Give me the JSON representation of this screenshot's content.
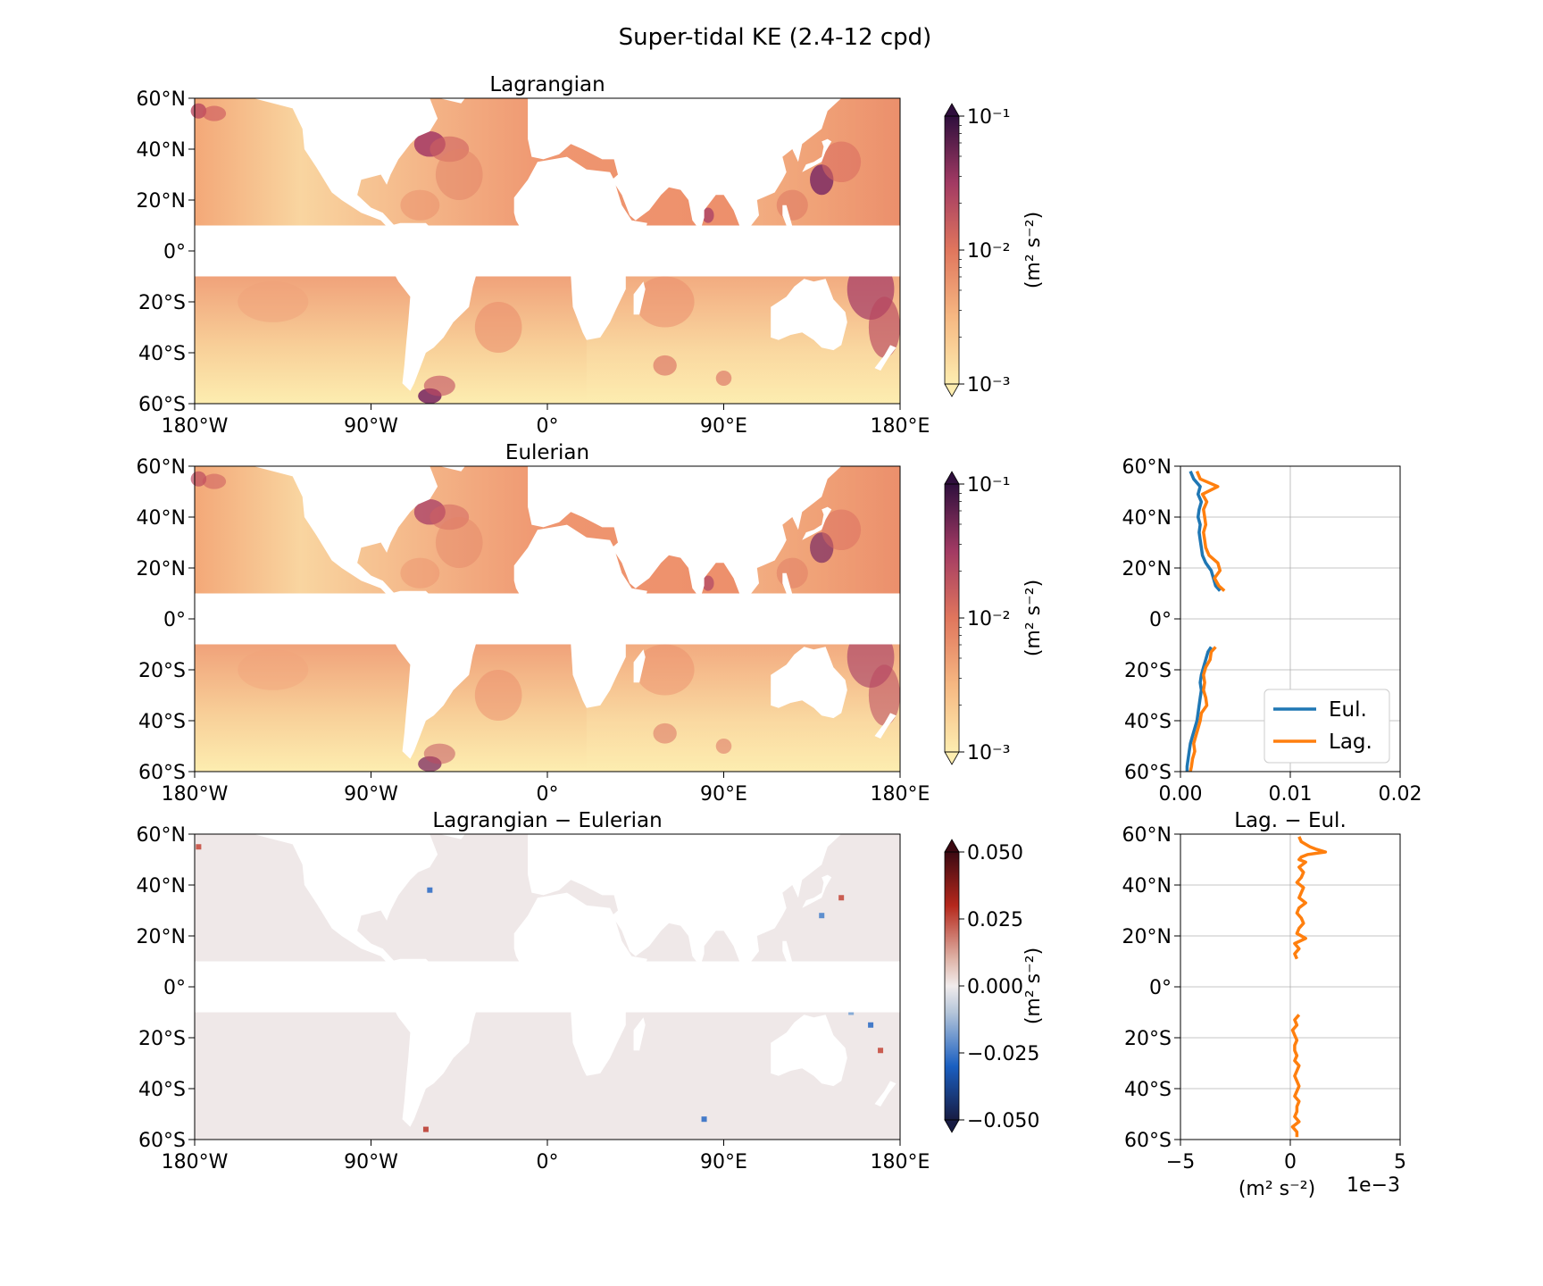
{
  "figure": {
    "title": "Super-tidal KE  (2.4-12 cpd)"
  },
  "colors": {
    "eul": "#1f77b4",
    "lag": "#ff7f0e",
    "diff": "#000000",
    "land": "#ffffff",
    "grid": "#b0b0b0"
  },
  "chart_data": [
    {
      "type": "heatmap",
      "title": "Lagrangian",
      "colorbar": {
        "scale": "log",
        "range": [
          0.001,
          0.1
        ],
        "ticks": [
          "10⁻¹",
          "10⁻²",
          "10⁻³"
        ],
        "label": "(m² s⁻²)",
        "colormap": "matter"
      },
      "xlim": [
        -180,
        180
      ],
      "ylim": [
        -60,
        60
      ],
      "xticks": [
        "180°W",
        "90°W",
        "0°",
        "90°E",
        "180°E"
      ],
      "yticks": [
        "60°N",
        "40°N",
        "20°N",
        "0°",
        "20°S",
        "40°S",
        "60°S"
      ]
    },
    {
      "type": "heatmap",
      "title": "Eulerian",
      "colorbar": {
        "scale": "log",
        "range": [
          0.001,
          0.1
        ],
        "ticks": [
          "10⁻¹",
          "10⁻²",
          "10⁻³"
        ],
        "label": "(m² s⁻²)",
        "colormap": "matter"
      },
      "xlim": [
        -180,
        180
      ],
      "ylim": [
        -60,
        60
      ],
      "xticks": [
        "180°W",
        "90°W",
        "0°",
        "90°E",
        "180°E"
      ],
      "yticks": [
        "60°N",
        "40°N",
        "20°N",
        "0°",
        "20°S",
        "40°S",
        "60°S"
      ]
    },
    {
      "type": "heatmap",
      "title": "Lagrangian − Eulerian",
      "colorbar": {
        "scale": "linear",
        "range": [
          -0.05,
          0.05
        ],
        "ticks": [
          "0.050",
          "0.025",
          "0.000",
          "−0.025",
          "−0.050"
        ],
        "label": "(m² s⁻²)",
        "colormap": "balance"
      },
      "xlim": [
        -180,
        180
      ],
      "ylim": [
        -60,
        60
      ],
      "xticks": [
        "180°W",
        "90°W",
        "0°",
        "90°E",
        "180°E"
      ],
      "yticks": [
        "60°N",
        "40°N",
        "20°N",
        "0°",
        "20°S",
        "40°S",
        "60°S"
      ]
    },
    {
      "type": "line",
      "title": "",
      "xlim": [
        0,
        0.02
      ],
      "ylim": [
        -60,
        60
      ],
      "xticks": [
        "0.00",
        "0.01",
        "0.02"
      ],
      "yticks": [
        "60°N",
        "40°N",
        "20°N",
        "0°",
        "20°S",
        "40°S",
        "60°S"
      ],
      "grid": true,
      "legend": {
        "position": "lower-right",
        "entries": [
          "Eul.",
          "Lag."
        ]
      },
      "series": [
        {
          "name": "Eul.",
          "lat": [
            58,
            55,
            52,
            49,
            46,
            43,
            40,
            37,
            34,
            31,
            28,
            25,
            22,
            19,
            16,
            13,
            11,
            -11,
            -13,
            -16,
            -19,
            -22,
            -25,
            -28,
            -31,
            -34,
            -37,
            -40,
            -43,
            -46,
            -49,
            -52,
            -55,
            -58,
            -60
          ],
          "values": [
            0.0009,
            0.0012,
            0.0018,
            0.0016,
            0.0019,
            0.0017,
            0.0016,
            0.0018,
            0.0017,
            0.0018,
            0.0019,
            0.002,
            0.0023,
            0.0028,
            0.003,
            0.0032,
            0.0036,
            0.0028,
            0.0025,
            0.0023,
            0.0021,
            0.0019,
            0.0018,
            0.0019,
            0.0018,
            0.0017,
            0.0016,
            0.0015,
            0.0013,
            0.0011,
            0.0009,
            0.0008,
            0.0007,
            0.0006,
            0.0006
          ]
        },
        {
          "name": "Lag.",
          "lat": [
            58,
            55,
            52,
            49,
            46,
            43,
            40,
            37,
            34,
            31,
            28,
            25,
            22,
            19,
            16,
            13,
            11,
            -11,
            -13,
            -16,
            -19,
            -22,
            -25,
            -28,
            -31,
            -34,
            -37,
            -40,
            -43,
            -46,
            -49,
            -52,
            -55,
            -58,
            -60
          ],
          "values": [
            0.0015,
            0.0018,
            0.0034,
            0.002,
            0.0024,
            0.0021,
            0.0022,
            0.0023,
            0.0021,
            0.0022,
            0.0023,
            0.0026,
            0.0034,
            0.0036,
            0.0031,
            0.0035,
            0.004,
            0.0032,
            0.0028,
            0.0027,
            0.0023,
            0.0021,
            0.0022,
            0.0021,
            0.0023,
            0.0024,
            0.0019,
            0.0018,
            0.0016,
            0.0014,
            0.0012,
            0.0013,
            0.0011,
            0.001,
            0.0009
          ]
        }
      ]
    },
    {
      "type": "line",
      "title": "Lag. − Eul.",
      "xlabel": "(m² s⁻²)",
      "xscale_label": "1e−3",
      "xlim": [
        -0.005,
        0.005
      ],
      "ylim": [
        -60,
        60
      ],
      "xticks": [
        "−5",
        "0",
        "5"
      ],
      "yticks": [
        "60°N",
        "40°N",
        "20°N",
        "0°",
        "20°S",
        "40°S",
        "60°S"
      ],
      "grid": true,
      "series": [
        {
          "name": "",
          "lat": [
            59,
            57,
            55,
            54,
            53,
            52,
            51,
            50,
            49,
            47,
            45,
            43,
            41,
            39,
            37,
            35,
            33,
            31,
            29,
            27,
            25,
            23,
            21,
            19,
            17,
            15,
            13,
            11,
            -11,
            -13,
            -15,
            -17,
            -19,
            -21,
            -23,
            -25,
            -27,
            -29,
            -31,
            -33,
            -35,
            -37,
            -39,
            -41,
            -43,
            -45,
            -47,
            -49,
            -51,
            -53,
            -55,
            -57,
            -59
          ],
          "values": [
            0.0004,
            0.0005,
            0.0009,
            0.0012,
            0.0016,
            0.0008,
            0.0005,
            0.0004,
            0.0007,
            0.0004,
            0.0006,
            0.0005,
            0.0003,
            0.0006,
            0.0005,
            0.0004,
            0.0007,
            0.0004,
            0.0003,
            0.0005,
            0.0006,
            0.0004,
            0.0003,
            0.0007,
            0.0002,
            0.0004,
            0.0002,
            0.0003,
            0.0004,
            0.0002,
            0.0003,
            0.0001,
            0.0002,
            0.0003,
            0.0002,
            0.0002,
            0.0003,
            0.0002,
            0.0004,
            0.0003,
            0.0002,
            0.0003,
            0.0004,
            0.0003,
            0.0002,
            0.0004,
            0.0003,
            0.0003,
            0.0002,
            0.0004,
            0.0001,
            0.0003,
            0.0003
          ]
        }
      ]
    }
  ]
}
